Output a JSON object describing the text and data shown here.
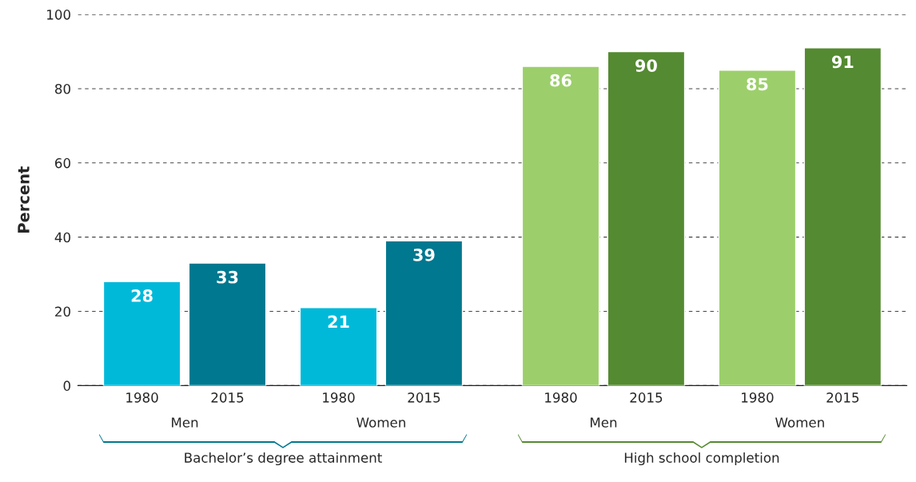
{
  "chart_data": {
    "type": "bar",
    "ylabel": "Percent",
    "categories": [
      "1980",
      "2015",
      "1980",
      "2015",
      "1980",
      "2015",
      "1980",
      "2015"
    ],
    "values": [
      28,
      33,
      21,
      39,
      86,
      90,
      85,
      91
    ],
    "colors": [
      "#00b9d9",
      "#00788f",
      "#00b9d9",
      "#00788f",
      "#9ccf6b",
      "#548a31",
      "#9ccf6b",
      "#548a31"
    ],
    "data_labels": true,
    "ylim": [
      0,
      100
    ],
    "yticks": [
      0,
      20,
      40,
      60,
      80,
      100
    ],
    "grid": "y",
    "annotations": [
      "Men",
      "Women",
      "Men",
      "Women",
      "Bachelor’s degree attainment",
      "High school completion"
    ]
  }
}
